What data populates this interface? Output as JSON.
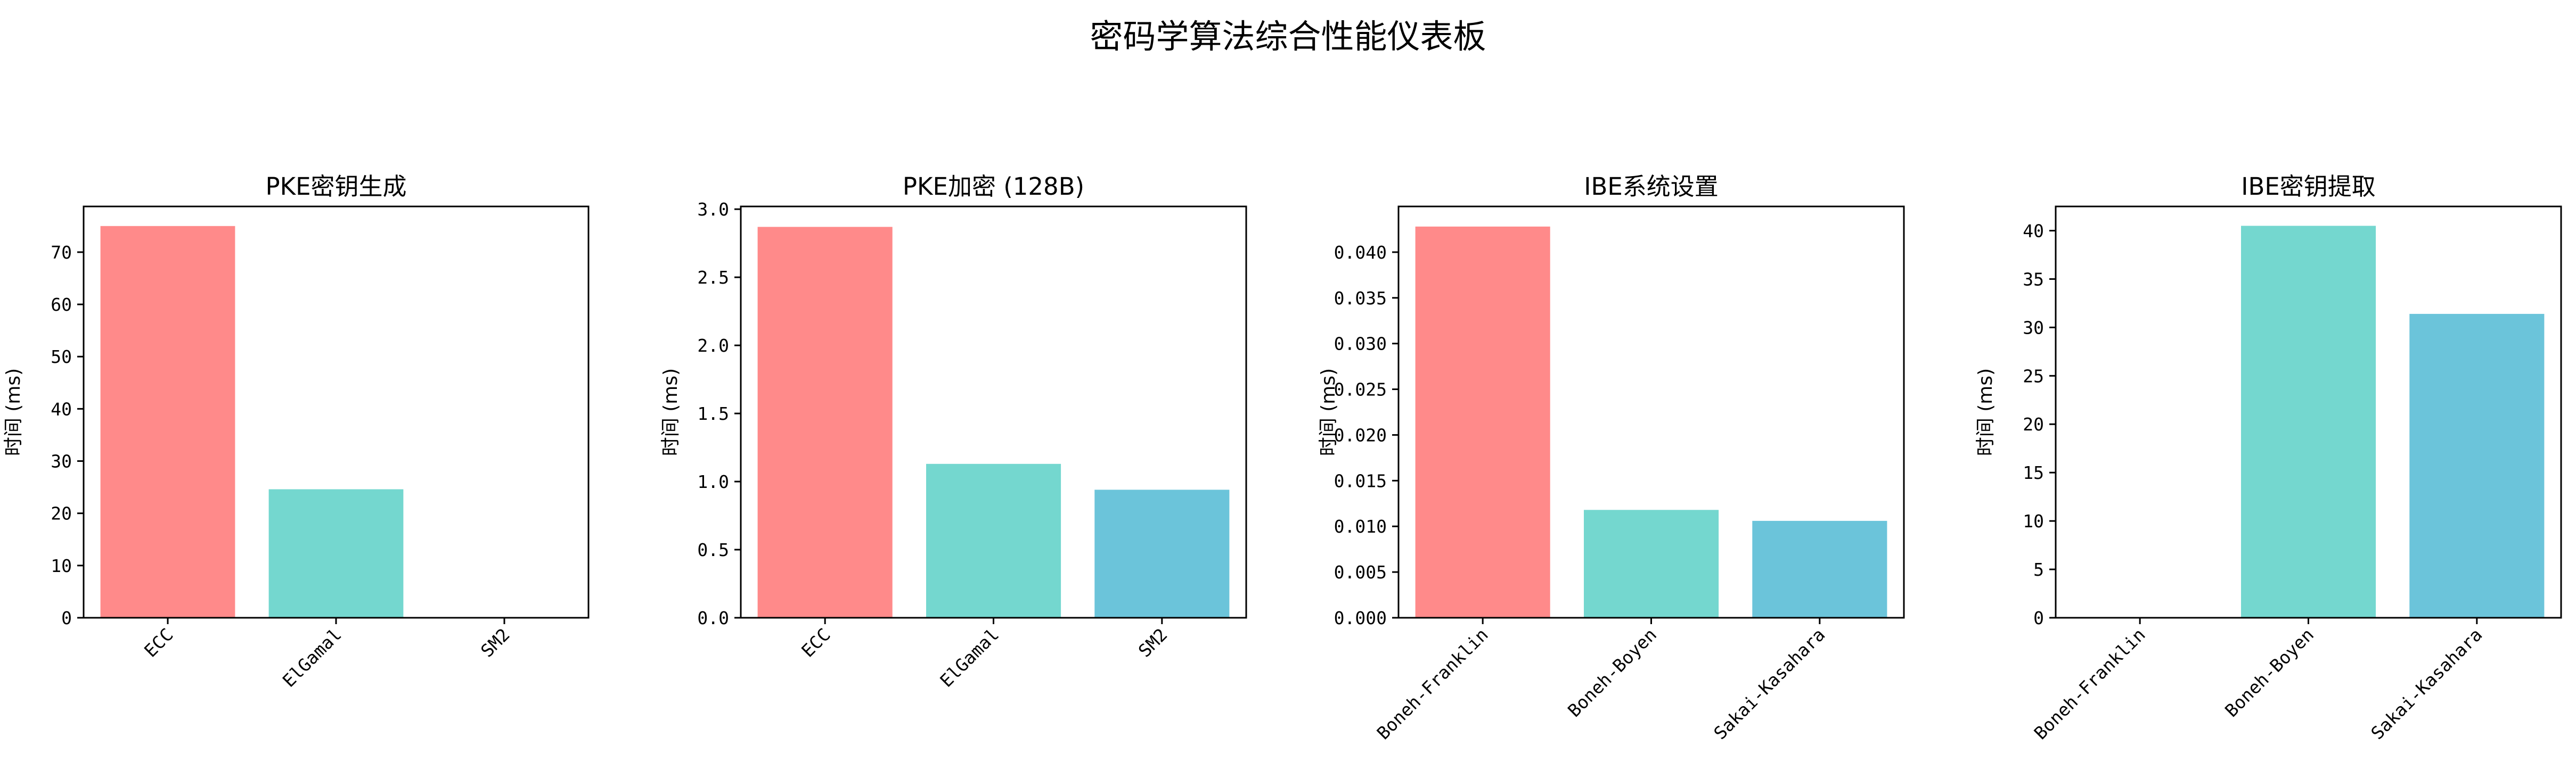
{
  "suptitle": "密码学算法综合性能仪表板",
  "colors": [
    "#ff8a8a",
    "#74d7cf",
    "#6bc4da"
  ],
  "chart_data": [
    {
      "type": "bar",
      "title": "PKE密钥生成",
      "ylabel": "时间 (ms)",
      "categories": [
        "ECC",
        "ElGamal",
        "SM2"
      ],
      "values": [
        75.0,
        24.6,
        0.0
      ],
      "ylim": [
        0,
        78.75
      ],
      "yticks": [
        0,
        10,
        20,
        30,
        40,
        50,
        60,
        70
      ],
      "ytick_labels": [
        "0",
        "10",
        "20",
        "30",
        "40",
        "50",
        "60",
        "70"
      ],
      "grid": false
    },
    {
      "type": "bar",
      "title": "PKE加密 (128B)",
      "ylabel": "时间 (ms)",
      "categories": [
        "ECC",
        "ElGamal",
        "SM2"
      ],
      "values": [
        2.87,
        1.13,
        0.94
      ],
      "ylim": [
        0,
        3.02
      ],
      "yticks": [
        0,
        0.5,
        1.0,
        1.5,
        2.0,
        2.5,
        3.0
      ],
      "ytick_labels": [
        "0.0",
        "0.5",
        "1.0",
        "1.5",
        "2.0",
        "2.5",
        "3.0"
      ],
      "grid": false
    },
    {
      "type": "bar",
      "title": "IBE系统设置",
      "ylabel": "时间 (ms)",
      "categories": [
        "Boneh-Franklin",
        "Boneh-Boyen",
        "Sakai-Kasahara"
      ],
      "values": [
        0.0428,
        0.0118,
        0.0106
      ],
      "ylim": [
        0,
        0.045
      ],
      "yticks": [
        0,
        0.005,
        0.01,
        0.015,
        0.02,
        0.025,
        0.03,
        0.035,
        0.04
      ],
      "ytick_labels": [
        "0.000",
        "0.005",
        "0.010",
        "0.015",
        "0.020",
        "0.025",
        "0.030",
        "0.035",
        "0.040"
      ],
      "grid": false
    },
    {
      "type": "bar",
      "title": "IBE密钥提取",
      "ylabel": "时间 (ms)",
      "categories": [
        "Boneh-Franklin",
        "Boneh-Boyen",
        "Sakai-Kasahara"
      ],
      "values": [
        0.0,
        40.5,
        31.4
      ],
      "ylim": [
        0,
        42.5
      ],
      "yticks": [
        0,
        5,
        10,
        15,
        20,
        25,
        30,
        35,
        40
      ],
      "ytick_labels": [
        "0",
        "5",
        "10",
        "15",
        "20",
        "25",
        "30",
        "35",
        "40"
      ],
      "grid": false
    }
  ]
}
